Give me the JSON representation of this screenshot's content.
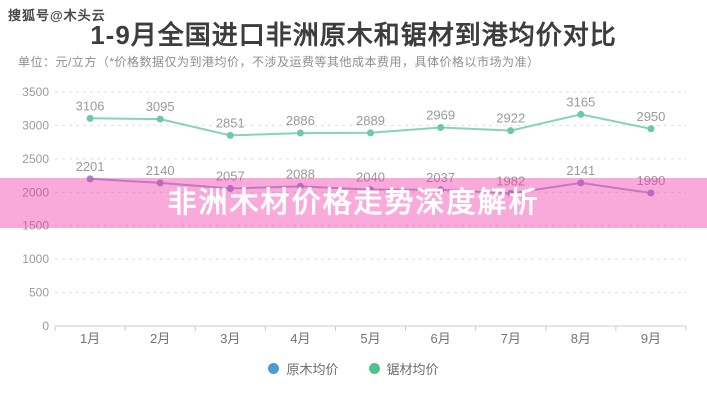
{
  "watermark": "搜狐号@木头云",
  "header": {
    "title": "1-9月全国进口非洲原木和锯材到港均价对比",
    "subtitle": "单位：元/立方（*价格数据仅为到港均价，不涉及运费等其他成本费用，具体价格以市场为准）"
  },
  "overlay": {
    "text": "非洲木材价格走势深度解析",
    "bg": "rgba(243,52,166,0.42)",
    "text_color": "#ffffff"
  },
  "chart_data": {
    "type": "line",
    "title": "1-9月全国进口非洲原木和锯材到港均价对比",
    "unit": "元/立方",
    "categories": [
      "1月",
      "2月",
      "3月",
      "4月",
      "5月",
      "6月",
      "7月",
      "8月",
      "9月"
    ],
    "series": [
      {
        "name": "原木均价",
        "line_color": "#a3a8d8",
        "point_color": "#938fc9",
        "legend_color": "#4b9bd5",
        "values": [
          2201,
          2140,
          2057,
          2088,
          2040,
          2037,
          1982,
          2141,
          1990
        ]
      },
      {
        "name": "锯材均价",
        "line_color": "#86d3b8",
        "point_color": "#6cc9a6",
        "legend_color": "#52c28d",
        "values": [
          3106,
          3095,
          2851,
          2886,
          2889,
          2969,
          2922,
          3165,
          2950
        ]
      }
    ],
    "ylim": [
      0,
      3500
    ],
    "yticks": [
      0,
      500,
      1000,
      1500,
      2000,
      2500,
      3000,
      3500
    ],
    "grid": "dashed-horizontal",
    "legend_position": "bottom",
    "axis_color": "#cccccc",
    "grid_color": "#dedede",
    "tick_label_color": "#9a9a9a",
    "x_label_color": "#737373",
    "data_label_color": "#9a9a9a"
  }
}
